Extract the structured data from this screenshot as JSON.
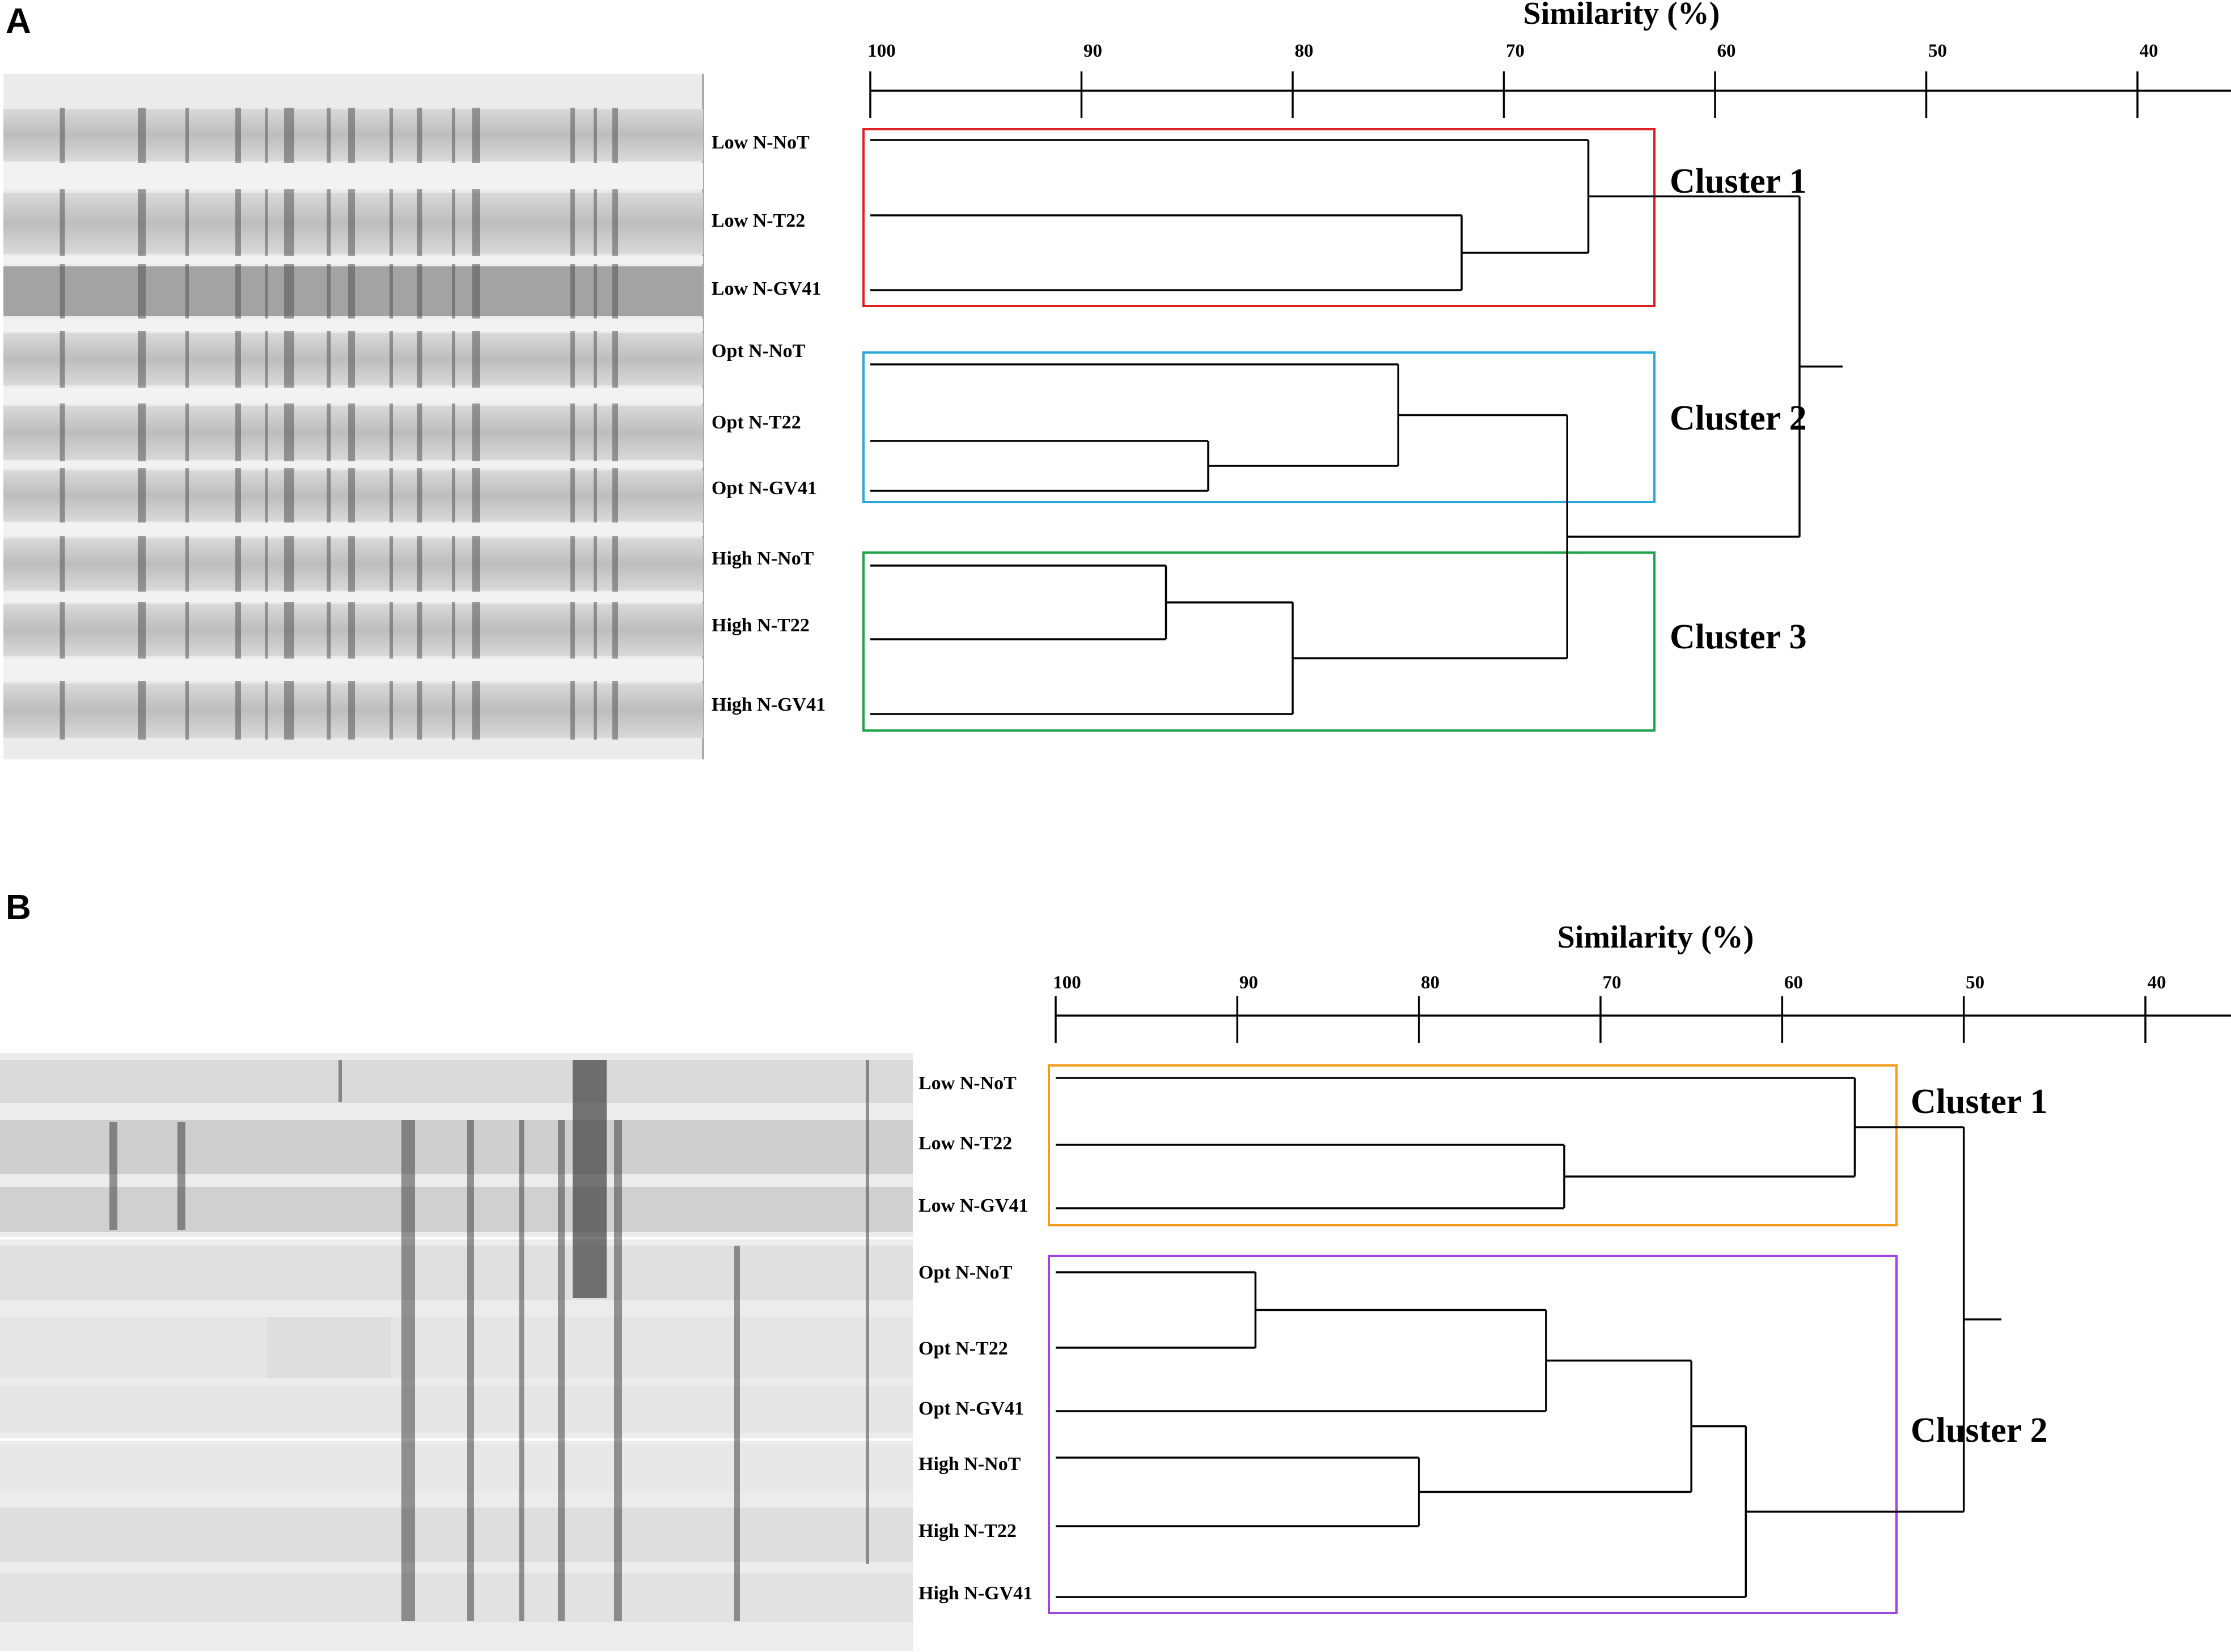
{
  "panels": [
    {
      "id": "A",
      "label": "A",
      "axis_title": "Similarity (%)",
      "ticks": [
        "100",
        "90",
        "80",
        "70",
        "60",
        "50",
        "40"
      ],
      "lanes": [
        "Low N-NoT",
        "Low N-T22",
        "Low N-GV41",
        "Opt N-NoT",
        "Opt N-T22",
        "Opt N-GV41",
        "High N-NoT",
        "High N-T22",
        "High N-GV41"
      ],
      "clusters": [
        {
          "label": "Cluster 1",
          "color": "#e02020"
        },
        {
          "label": "Cluster 2",
          "color": "#29a8e0"
        },
        {
          "label": "Cluster 3",
          "color": "#1fa34a"
        }
      ],
      "merges": [
        {
          "children": [
            "leaf:1",
            "leaf:2"
          ],
          "similarity": 72
        },
        {
          "children": [
            "leaf:0",
            "node:0"
          ],
          "similarity": 66
        },
        {
          "children": [
            "leaf:4",
            "leaf:5"
          ],
          "similarity": 84
        },
        {
          "children": [
            "leaf:3",
            "node:2"
          ],
          "similarity": 75
        },
        {
          "children": [
            "leaf:6",
            "leaf:7"
          ],
          "similarity": 86
        },
        {
          "children": [
            "node:4",
            "leaf:8"
          ],
          "similarity": 80
        },
        {
          "children": [
            "node:3",
            "node:5"
          ],
          "similarity": 67
        },
        {
          "children": [
            "node:1",
            "node:6"
          ],
          "similarity": 56
        }
      ]
    },
    {
      "id": "B",
      "label": "B",
      "axis_title": "Similarity (%)",
      "ticks": [
        "100",
        "90",
        "80",
        "70",
        "60",
        "50",
        "40"
      ],
      "lanes": [
        "Low N-NoT",
        "Low N-T22",
        "Low N-GV41",
        "Opt N-NoT",
        "Opt N-T22",
        "Opt N-GV41",
        "High N-NoT",
        "High N-T22",
        "High N-GV41"
      ],
      "clusters": [
        {
          "label": "Cluster 1",
          "color": "#f39c1d"
        },
        {
          "label": "Cluster 2",
          "color": "#9b46e0"
        }
      ],
      "merges": [
        {
          "children": [
            "leaf:1",
            "leaf:2"
          ],
          "similarity": 72
        },
        {
          "children": [
            "leaf:0",
            "node:0"
          ],
          "similarity": 56
        },
        {
          "children": [
            "leaf:3",
            "leaf:4"
          ],
          "similarity": 89
        },
        {
          "children": [
            "node:2",
            "leaf:5"
          ],
          "similarity": 73
        },
        {
          "children": [
            "leaf:6",
            "leaf:7"
          ],
          "similarity": 80
        },
        {
          "children": [
            "node:3",
            "node:4"
          ],
          "similarity": 65
        },
        {
          "children": [
            "node:5",
            "leaf:8"
          ],
          "similarity": 62
        },
        {
          "children": [
            "node:1",
            "node:6"
          ],
          "similarity": 50
        }
      ]
    }
  ]
}
